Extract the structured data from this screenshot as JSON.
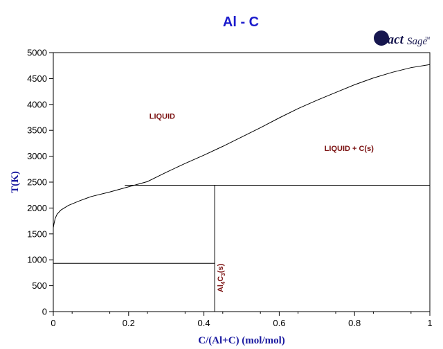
{
  "logo": {
    "main": "Fact",
    "sub": "Sage",
    "tm": "TM"
  },
  "chart_data": {
    "type": "line",
    "title": "Al - C",
    "xlabel": "C/(Al+C) (mol/mol)",
    "ylabel": "T(K)",
    "xlim": [
      0,
      1
    ],
    "ylim": [
      0,
      5000
    ],
    "xticks": [
      0,
      0.2,
      0.4,
      0.6,
      0.8,
      1
    ],
    "xtick_labels": [
      "0",
      "0.2",
      "0.4",
      "0.6",
      "0.8",
      "1"
    ],
    "yticks": [
      0,
      500,
      1000,
      1500,
      2000,
      2500,
      3000,
      3500,
      4000,
      4500,
      5000
    ],
    "ytick_labels": [
      "0",
      "500",
      "1000",
      "1500",
      "2000",
      "2500",
      "3000",
      "3500",
      "4000",
      "4500",
      "5000"
    ],
    "grid": false,
    "series": [
      {
        "id": "liquidus",
        "points": [
          [
            0.0,
            1620
          ],
          [
            0.002,
            1700
          ],
          [
            0.005,
            1800
          ],
          [
            0.01,
            1880
          ],
          [
            0.02,
            1960
          ],
          [
            0.04,
            2050
          ],
          [
            0.07,
            2140
          ],
          [
            0.1,
            2220
          ],
          [
            0.15,
            2310
          ],
          [
            0.2,
            2410
          ],
          [
            0.25,
            2510
          ],
          [
            0.3,
            2690
          ],
          [
            0.35,
            2860
          ],
          [
            0.4,
            3020
          ],
          [
            0.45,
            3190
          ],
          [
            0.5,
            3370
          ],
          [
            0.55,
            3550
          ],
          [
            0.6,
            3740
          ],
          [
            0.65,
            3920
          ],
          [
            0.7,
            4080
          ],
          [
            0.75,
            4230
          ],
          [
            0.8,
            4380
          ],
          [
            0.85,
            4510
          ],
          [
            0.9,
            4620
          ],
          [
            0.95,
            4710
          ],
          [
            1.0,
            4770
          ]
        ]
      },
      {
        "id": "eutectic-line",
        "points": [
          [
            0.19,
            2440
          ],
          [
            1.0,
            2440
          ]
        ]
      },
      {
        "id": "al4c3-line",
        "points": [
          [
            0.4286,
            0
          ],
          [
            0.4286,
            2440
          ]
        ]
      },
      {
        "id": "al-melting-line",
        "points": [
          [
            0.0,
            933
          ],
          [
            0.4286,
            933
          ]
        ]
      }
    ],
    "annotations": [
      {
        "id": "liquid",
        "text": "LIQUID",
        "x": 0.255,
        "y": 3720
      },
      {
        "id": "liquid-c",
        "text": "LIQUID + C(s)",
        "x": 0.72,
        "y": 3100
      }
    ],
    "compound_label": {
      "base": "Al",
      "sub1": "4",
      "mid": "C",
      "sub2": "3",
      "tail": "(s)",
      "x": 0.432,
      "y": 650
    }
  }
}
